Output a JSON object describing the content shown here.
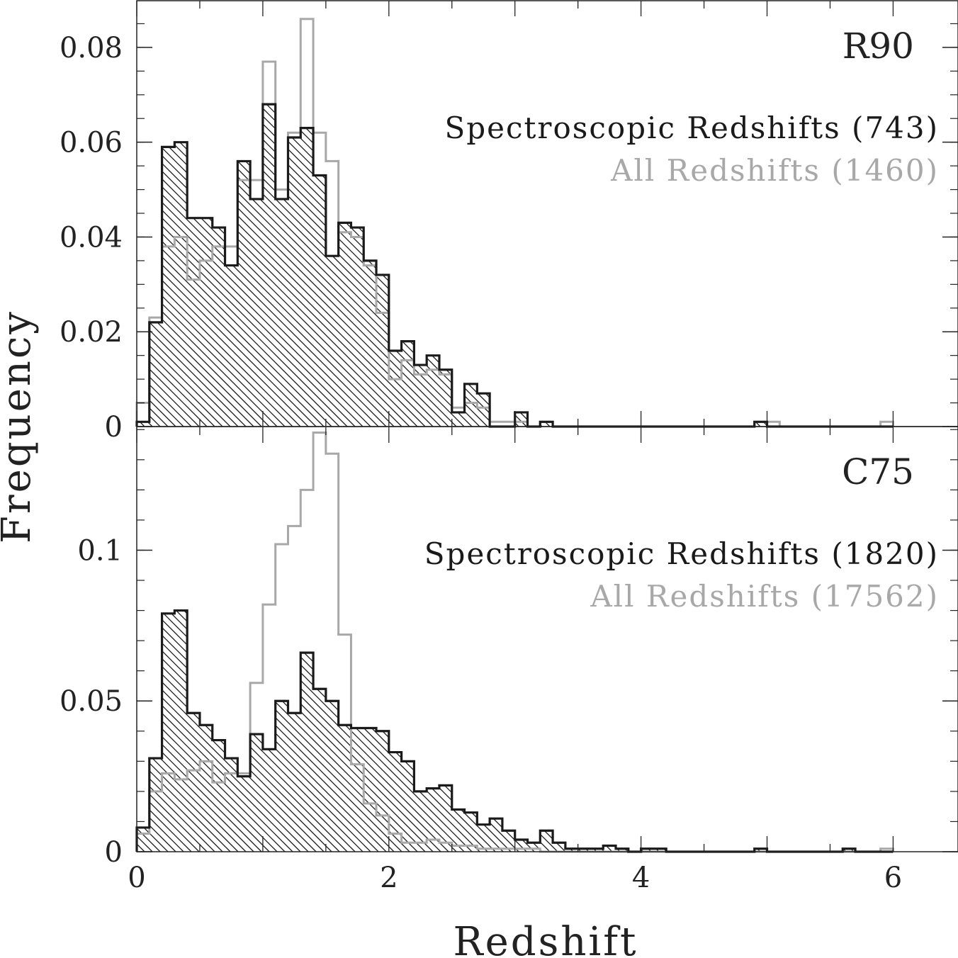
{
  "chart_data": [
    {
      "type": "histogram",
      "panel_label": "R90",
      "xlabel": "Redshift",
      "ylabel": "Frequency",
      "xlim": [
        0,
        6.2
      ],
      "ylim": [
        0,
        0.09
      ],
      "bin_width": 0.1,
      "x_ticks": [
        0,
        2,
        4,
        6
      ],
      "y_ticks": [
        0,
        0.02,
        0.04,
        0.06,
        0.08
      ],
      "y_tick_labels": [
        "0",
        "0.02",
        "0.04",
        "0.06",
        "0.08"
      ],
      "series": [
        {
          "name": "Spectroscopic Redshifts (743)",
          "style": "hatched",
          "color": "#1a1a1a",
          "values": [
            0.001,
            0.022,
            0.059,
            0.06,
            0.044,
            0.044,
            0.042,
            0.034,
            0.056,
            0.048,
            0.068,
            0.048,
            0.061,
            0.063,
            0.053,
            0.036,
            0.043,
            0.042,
            0.035,
            0.032,
            0.016,
            0.018,
            0.013,
            0.015,
            0.012,
            0.003,
            0.009,
            0.007,
            0.0,
            0.0,
            0.003,
            0.0,
            0.001,
            0,
            0,
            0,
            0,
            0,
            0,
            0,
            0,
            0,
            0,
            0,
            0,
            0,
            0,
            0,
            0,
            0.001,
            0,
            0,
            0,
            0,
            0,
            0,
            0,
            0,
            0,
            0
          ]
        },
        {
          "name": "All Redshifts (1460)",
          "style": "outline",
          "color": "#a8a8a8",
          "values": [
            0.005,
            0.023,
            0.038,
            0.04,
            0.031,
            0.035,
            0.038,
            0.038,
            0.052,
            0.052,
            0.077,
            0.05,
            0.062,
            0.086,
            0.062,
            0.056,
            0.041,
            0.04,
            0.034,
            0.024,
            0.01,
            0.014,
            0.011,
            0.012,
            0.011,
            0.004,
            0.005,
            0.004,
            0.001,
            0.001,
            0.001,
            0.0,
            0.001,
            0,
            0,
            0,
            0,
            0,
            0,
            0,
            0,
            0,
            0,
            0,
            0,
            0,
            0,
            0,
            0,
            0.001,
            0.001,
            0,
            0,
            0,
            0,
            0,
            0,
            0,
            0,
            0.001
          ]
        }
      ]
    },
    {
      "type": "histogram",
      "panel_label": "C75",
      "xlabel": "Redshift",
      "ylabel": "Frequency",
      "xlim": [
        0,
        6.2
      ],
      "ylim": [
        0,
        0.141
      ],
      "bin_width": 0.1,
      "x_ticks": [
        0,
        2,
        4,
        6
      ],
      "x_tick_labels": [
        "0",
        "2",
        "4",
        "6"
      ],
      "y_ticks": [
        0,
        0.05,
        0.1
      ],
      "y_tick_labels": [
        "0",
        "0.05",
        "0.1"
      ],
      "series": [
        {
          "name": "Spectroscopic Redshifts (1820)",
          "style": "hatched",
          "color": "#1a1a1a",
          "values": [
            0.008,
            0.031,
            0.079,
            0.08,
            0.046,
            0.042,
            0.037,
            0.031,
            0.025,
            0.039,
            0.034,
            0.05,
            0.046,
            0.066,
            0.054,
            0.05,
            0.042,
            0.041,
            0.041,
            0.04,
            0.033,
            0.03,
            0.02,
            0.021,
            0.022,
            0.014,
            0.013,
            0.009,
            0.011,
            0.007,
            0.004,
            0.003,
            0.007,
            0.003,
            0.001,
            0.001,
            0.001,
            0.002,
            0.001,
            0.0,
            0.001,
            0.001,
            0,
            0,
            0,
            0,
            0,
            0,
            0,
            0.001,
            0,
            0,
            0,
            0,
            0,
            0,
            0.001,
            0,
            0,
            0
          ]
        },
        {
          "name": "All Redshifts (17562)",
          "style": "outline",
          "color": "#a8a8a8",
          "values": [
            0.006,
            0.02,
            0.026,
            0.024,
            0.027,
            0.03,
            0.023,
            0.026,
            0.026,
            0.056,
            0.082,
            0.102,
            0.108,
            0.12,
            0.139,
            0.132,
            0.072,
            0.029,
            0.016,
            0.012,
            0.006,
            0.003,
            0.003,
            0.004,
            0.003,
            0.002,
            0.002,
            0.001,
            0.001,
            0.001,
            0.001,
            0.001,
            0.0,
            0.0,
            0.0,
            0.0,
            0.0,
            0.0,
            0.0,
            0.0,
            0,
            0,
            0,
            0,
            0,
            0,
            0,
            0,
            0,
            0,
            0,
            0,
            0,
            0,
            0,
            0,
            0,
            0,
            0,
            0.001
          ]
        }
      ]
    }
  ]
}
